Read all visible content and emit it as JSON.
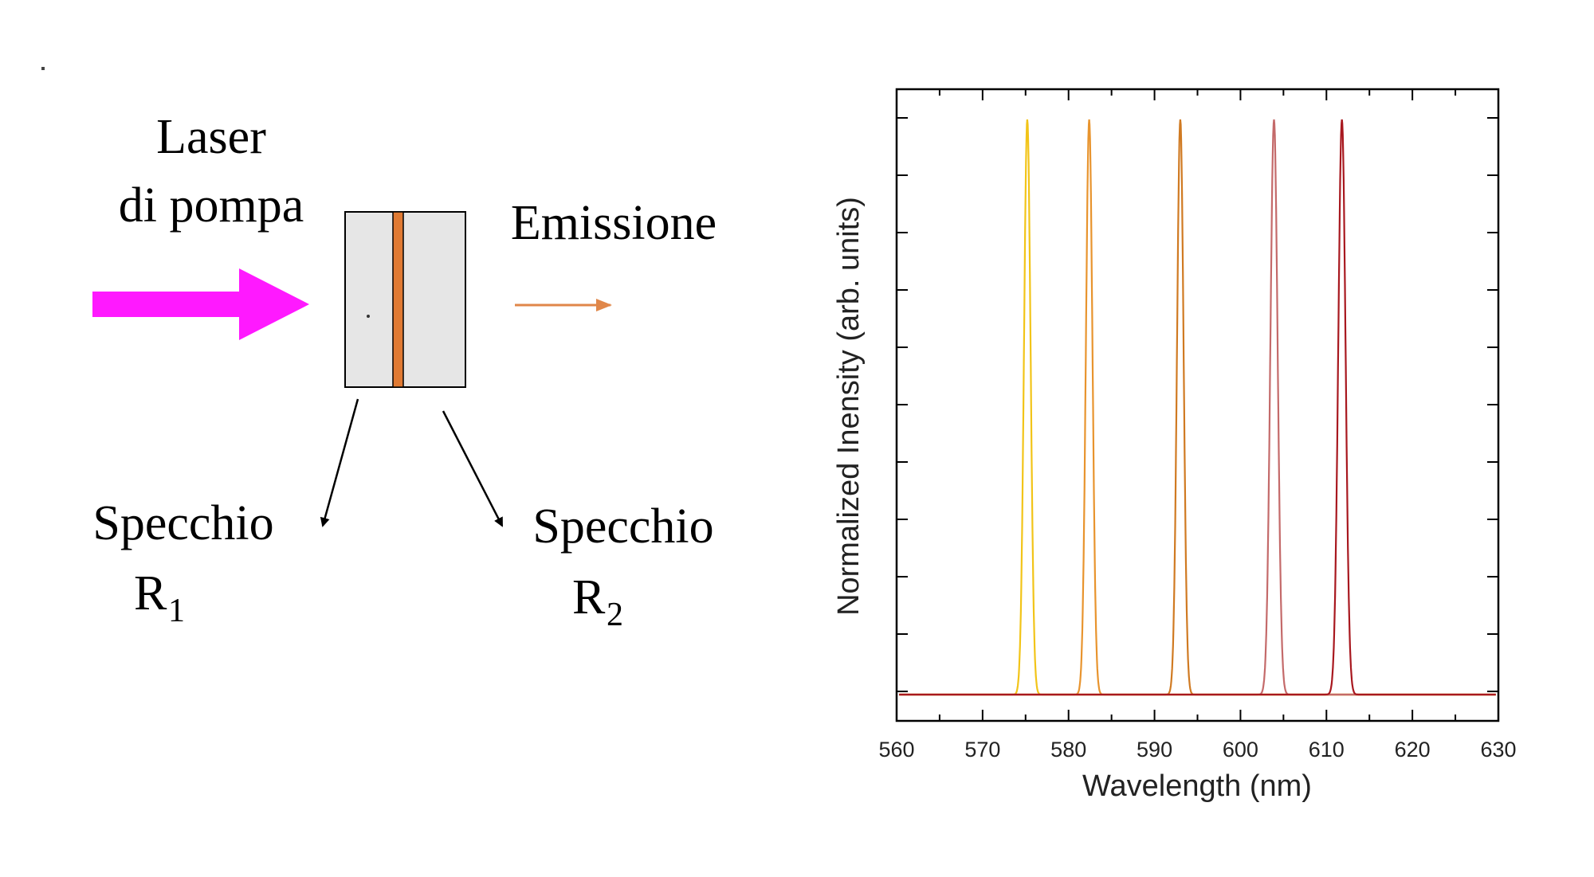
{
  "diagram": {
    "pump_label_line1": "Laser",
    "pump_label_line2": "di pompa",
    "emission_label": "Emissione",
    "mirror1_label": "Specchio",
    "mirror1_symbol": "R",
    "mirror1_subscript": "1",
    "mirror2_label": "Specchio",
    "mirror2_symbol": "R",
    "mirror2_subscript": "2",
    "colors": {
      "pump_arrow": "#ff19ff",
      "emission_arrow": "#e0874a",
      "gain_layer": "#e07a33",
      "cavity_fill": "#e6e6e6"
    }
  },
  "chart_data": {
    "type": "line",
    "xlabel": "Wavelength (nm)",
    "ylabel": "Normalized Inensity (arb. units)",
    "xlim": [
      560,
      630
    ],
    "ylim": [
      0,
      1
    ],
    "x_ticks": [
      "560",
      "570",
      "580",
      "590",
      "600",
      "610",
      "620",
      "630"
    ],
    "y_tick_labels_shown": false,
    "grid": false,
    "series": [
      {
        "peak_nm": 575.2,
        "fwhm_nm": 0.9,
        "peak_value": 1.0,
        "color": "#f2c418"
      },
      {
        "peak_nm": 582.4,
        "fwhm_nm": 0.9,
        "peak_value": 1.0,
        "color": "#e8942e"
      },
      {
        "peak_nm": 593.0,
        "fwhm_nm": 0.9,
        "peak_value": 1.0,
        "color": "#d07a22"
      },
      {
        "peak_nm": 603.9,
        "fwhm_nm": 1.0,
        "peak_value": 1.0,
        "color": "#c46a6a"
      },
      {
        "peak_nm": 611.8,
        "fwhm_nm": 1.0,
        "peak_value": 1.0,
        "color": "#a8181f"
      }
    ]
  }
}
